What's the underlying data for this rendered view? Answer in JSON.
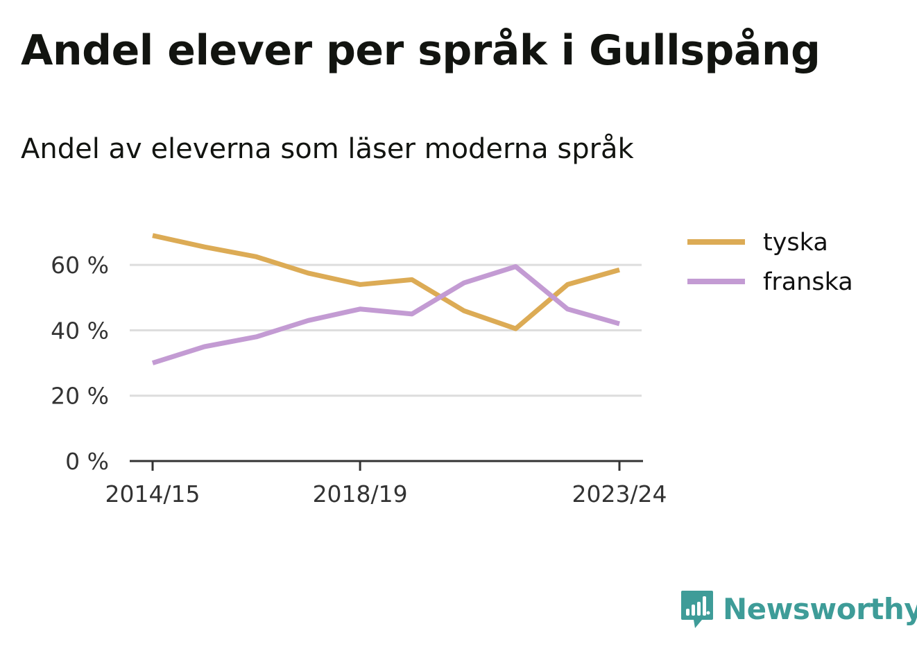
{
  "title": "Andel elever per språk i Gullspång",
  "subtitle": "Andel av eleverna som läser moderna språk",
  "brand": {
    "name": "Newsworthy",
    "color": "#3e9c98",
    "icon": "newsworthy-logo-icon"
  },
  "chart_data": {
    "type": "line",
    "x": [
      "2014/15",
      "2015/16",
      "2016/17",
      "2017/18",
      "2018/19",
      "2019/20",
      "2020/21",
      "2021/22",
      "2022/23",
      "2023/24"
    ],
    "x_tick_labels": [
      "2014/15",
      "2018/19",
      "2023/24"
    ],
    "y_ticks": [
      0,
      20,
      40,
      60
    ],
    "y_tick_labels": [
      "0 %",
      "20 %",
      "40 %",
      "60 %"
    ],
    "ylim": [
      0,
      70
    ],
    "grid": true,
    "legend_position": "right",
    "series": [
      {
        "name": "tyska",
        "color": "#dcab55",
        "values": [
          69,
          65.5,
          62.5,
          57.5,
          54,
          55.5,
          46,
          40.5,
          54,
          58.5
        ]
      },
      {
        "name": "franska",
        "color": "#c39bd3",
        "values": [
          30,
          35,
          38,
          43,
          46.5,
          45,
          54.5,
          59.5,
          46.5,
          42
        ]
      }
    ]
  }
}
